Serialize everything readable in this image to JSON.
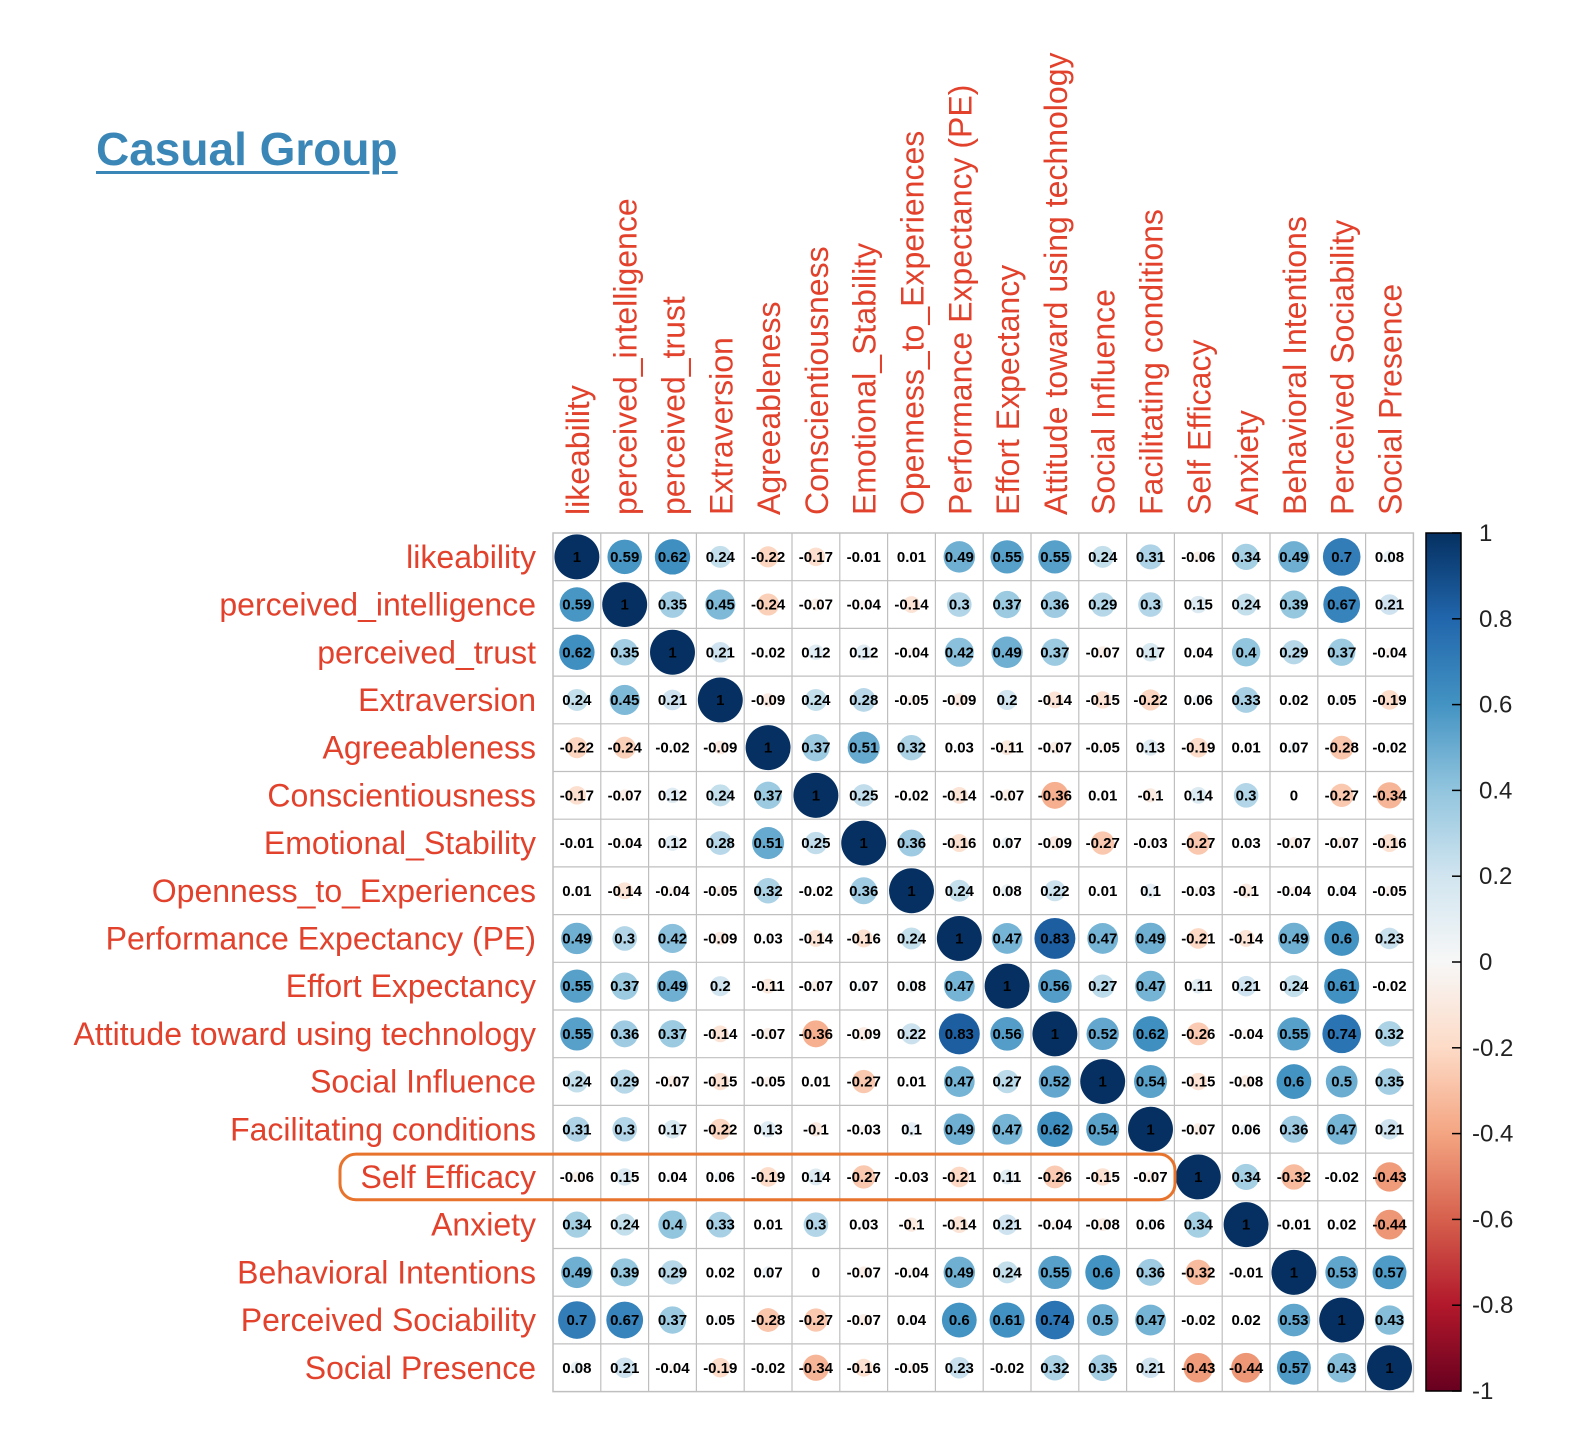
{
  "title": "Casual Group",
  "chart_data": {
    "type": "heatmap",
    "title": "Casual Group",
    "labels": [
      "likeability",
      "perceived_intelligence",
      "perceived_trust",
      "Extraversion",
      "Agreeableness",
      "Conscientiousness",
      "Emotional_Stability",
      "Openness_to_Experiences",
      "Performance Expectancy (PE)",
      "Effort Expectancy",
      "Attitude toward using technology",
      "Social Influence",
      "Facilitating conditions",
      "Self Efficacy",
      "Anxiety",
      "Behavioral Intentions",
      "Perceived Sociability",
      "Social Presence"
    ],
    "matrix": [
      [
        1,
        0.59,
        0.62,
        0.24,
        -0.22,
        -0.17,
        -0.01,
        0.01,
        0.49,
        0.55,
        0.55,
        0.24,
        0.31,
        -0.06,
        0.34,
        0.49,
        0.7,
        0.08
      ],
      [
        0.59,
        1,
        0.35,
        0.45,
        -0.24,
        -0.07,
        -0.04,
        -0.14,
        0.3,
        0.37,
        0.36,
        0.29,
        0.3,
        0.15,
        0.24,
        0.39,
        0.67,
        0.21
      ],
      [
        0.62,
        0.35,
        1,
        0.21,
        -0.02,
        0.12,
        0.12,
        -0.04,
        0.42,
        0.49,
        0.37,
        -0.07,
        0.17,
        0.04,
        0.4,
        0.29,
        0.37,
        -0.04
      ],
      [
        0.24,
        0.45,
        0.21,
        1,
        -0.09,
        0.24,
        0.28,
        -0.05,
        -0.09,
        0.2,
        -0.14,
        -0.15,
        -0.22,
        0.06,
        0.33,
        0.02,
        0.05,
        -0.19
      ],
      [
        -0.22,
        -0.24,
        -0.02,
        -0.09,
        1,
        0.37,
        0.51,
        0.32,
        0.03,
        -0.11,
        -0.07,
        -0.05,
        0.13,
        -0.19,
        0.01,
        0.07,
        -0.28,
        -0.02
      ],
      [
        -0.17,
        -0.07,
        0.12,
        0.24,
        0.37,
        1,
        0.25,
        -0.02,
        -0.14,
        -0.07,
        -0.36,
        0.01,
        -0.1,
        0.14,
        0.3,
        0,
        -0.27,
        -0.34
      ],
      [
        -0.01,
        -0.04,
        0.12,
        0.28,
        0.51,
        0.25,
        1,
        0.36,
        -0.16,
        0.07,
        -0.09,
        -0.27,
        -0.03,
        -0.27,
        0.03,
        -0.07,
        -0.07,
        -0.16
      ],
      [
        0.01,
        -0.14,
        -0.04,
        -0.05,
        0.32,
        -0.02,
        0.36,
        1,
        0.24,
        0.08,
        0.22,
        0.01,
        0.1,
        -0.03,
        -0.1,
        -0.04,
        0.04,
        -0.05
      ],
      [
        0.49,
        0.3,
        0.42,
        -0.09,
        0.03,
        -0.14,
        -0.16,
        0.24,
        1,
        0.47,
        0.83,
        0.47,
        0.49,
        -0.21,
        -0.14,
        0.49,
        0.6,
        0.23
      ],
      [
        0.55,
        0.37,
        0.49,
        0.2,
        -0.11,
        -0.07,
        0.07,
        0.08,
        0.47,
        1,
        0.56,
        0.27,
        0.47,
        0.11,
        0.21,
        0.24,
        0.61,
        -0.02
      ],
      [
        0.55,
        0.36,
        0.37,
        -0.14,
        -0.07,
        -0.36,
        -0.09,
        0.22,
        0.83,
        0.56,
        1,
        0.52,
        0.62,
        -0.26,
        -0.04,
        0.55,
        0.74,
        0.32
      ],
      [
        0.24,
        0.29,
        -0.07,
        -0.15,
        -0.05,
        0.01,
        -0.27,
        0.01,
        0.47,
        0.27,
        0.52,
        1,
        0.54,
        -0.15,
        -0.08,
        0.6,
        0.5,
        0.35
      ],
      [
        0.31,
        0.3,
        0.17,
        -0.22,
        0.13,
        -0.1,
        -0.03,
        0.1,
        0.49,
        0.47,
        0.62,
        0.54,
        1,
        -0.07,
        0.06,
        0.36,
        0.47,
        0.21
      ],
      [
        -0.06,
        0.15,
        0.04,
        0.06,
        -0.19,
        0.14,
        -0.27,
        -0.03,
        -0.21,
        0.11,
        -0.26,
        -0.15,
        -0.07,
        1,
        0.34,
        -0.32,
        -0.02,
        -0.43
      ],
      [
        0.34,
        0.24,
        0.4,
        0.33,
        0.01,
        0.3,
        0.03,
        -0.1,
        -0.14,
        0.21,
        -0.04,
        -0.08,
        0.06,
        0.34,
        1,
        -0.01,
        0.02,
        -0.44
      ],
      [
        0.49,
        0.39,
        0.29,
        0.02,
        0.07,
        0,
        -0.07,
        -0.04,
        0.49,
        0.24,
        0.55,
        0.6,
        0.36,
        -0.32,
        -0.01,
        1,
        0.53,
        0.57
      ],
      [
        0.7,
        0.67,
        0.37,
        0.05,
        -0.28,
        -0.27,
        -0.07,
        0.04,
        0.6,
        0.61,
        0.74,
        0.5,
        0.47,
        -0.02,
        0.02,
        0.53,
        1,
        0.43
      ],
      [
        0.08,
        0.21,
        -0.04,
        -0.19,
        -0.02,
        -0.34,
        -0.16,
        -0.05,
        0.23,
        -0.02,
        0.32,
        0.35,
        0.21,
        -0.43,
        -0.44,
        0.57,
        0.43,
        1
      ]
    ],
    "colorbar": {
      "range": [
        -1,
        1
      ],
      "ticks": [
        "1",
        "0.8",
        "0.6",
        "0.4",
        "0.2",
        "0",
        "-0.2",
        "-0.4",
        "-0.6",
        "-0.8",
        "-1"
      ],
      "colors": {
        "positive": "#053061",
        "neutral": "#f7f7f7",
        "negative": "#67001f"
      }
    },
    "highlight": {
      "row": "Self Efficacy",
      "color": "#e8732c"
    },
    "colors": {
      "label_text": "#e2412c",
      "title": "#3a86b6",
      "grid": "#bfbfbf"
    }
  }
}
